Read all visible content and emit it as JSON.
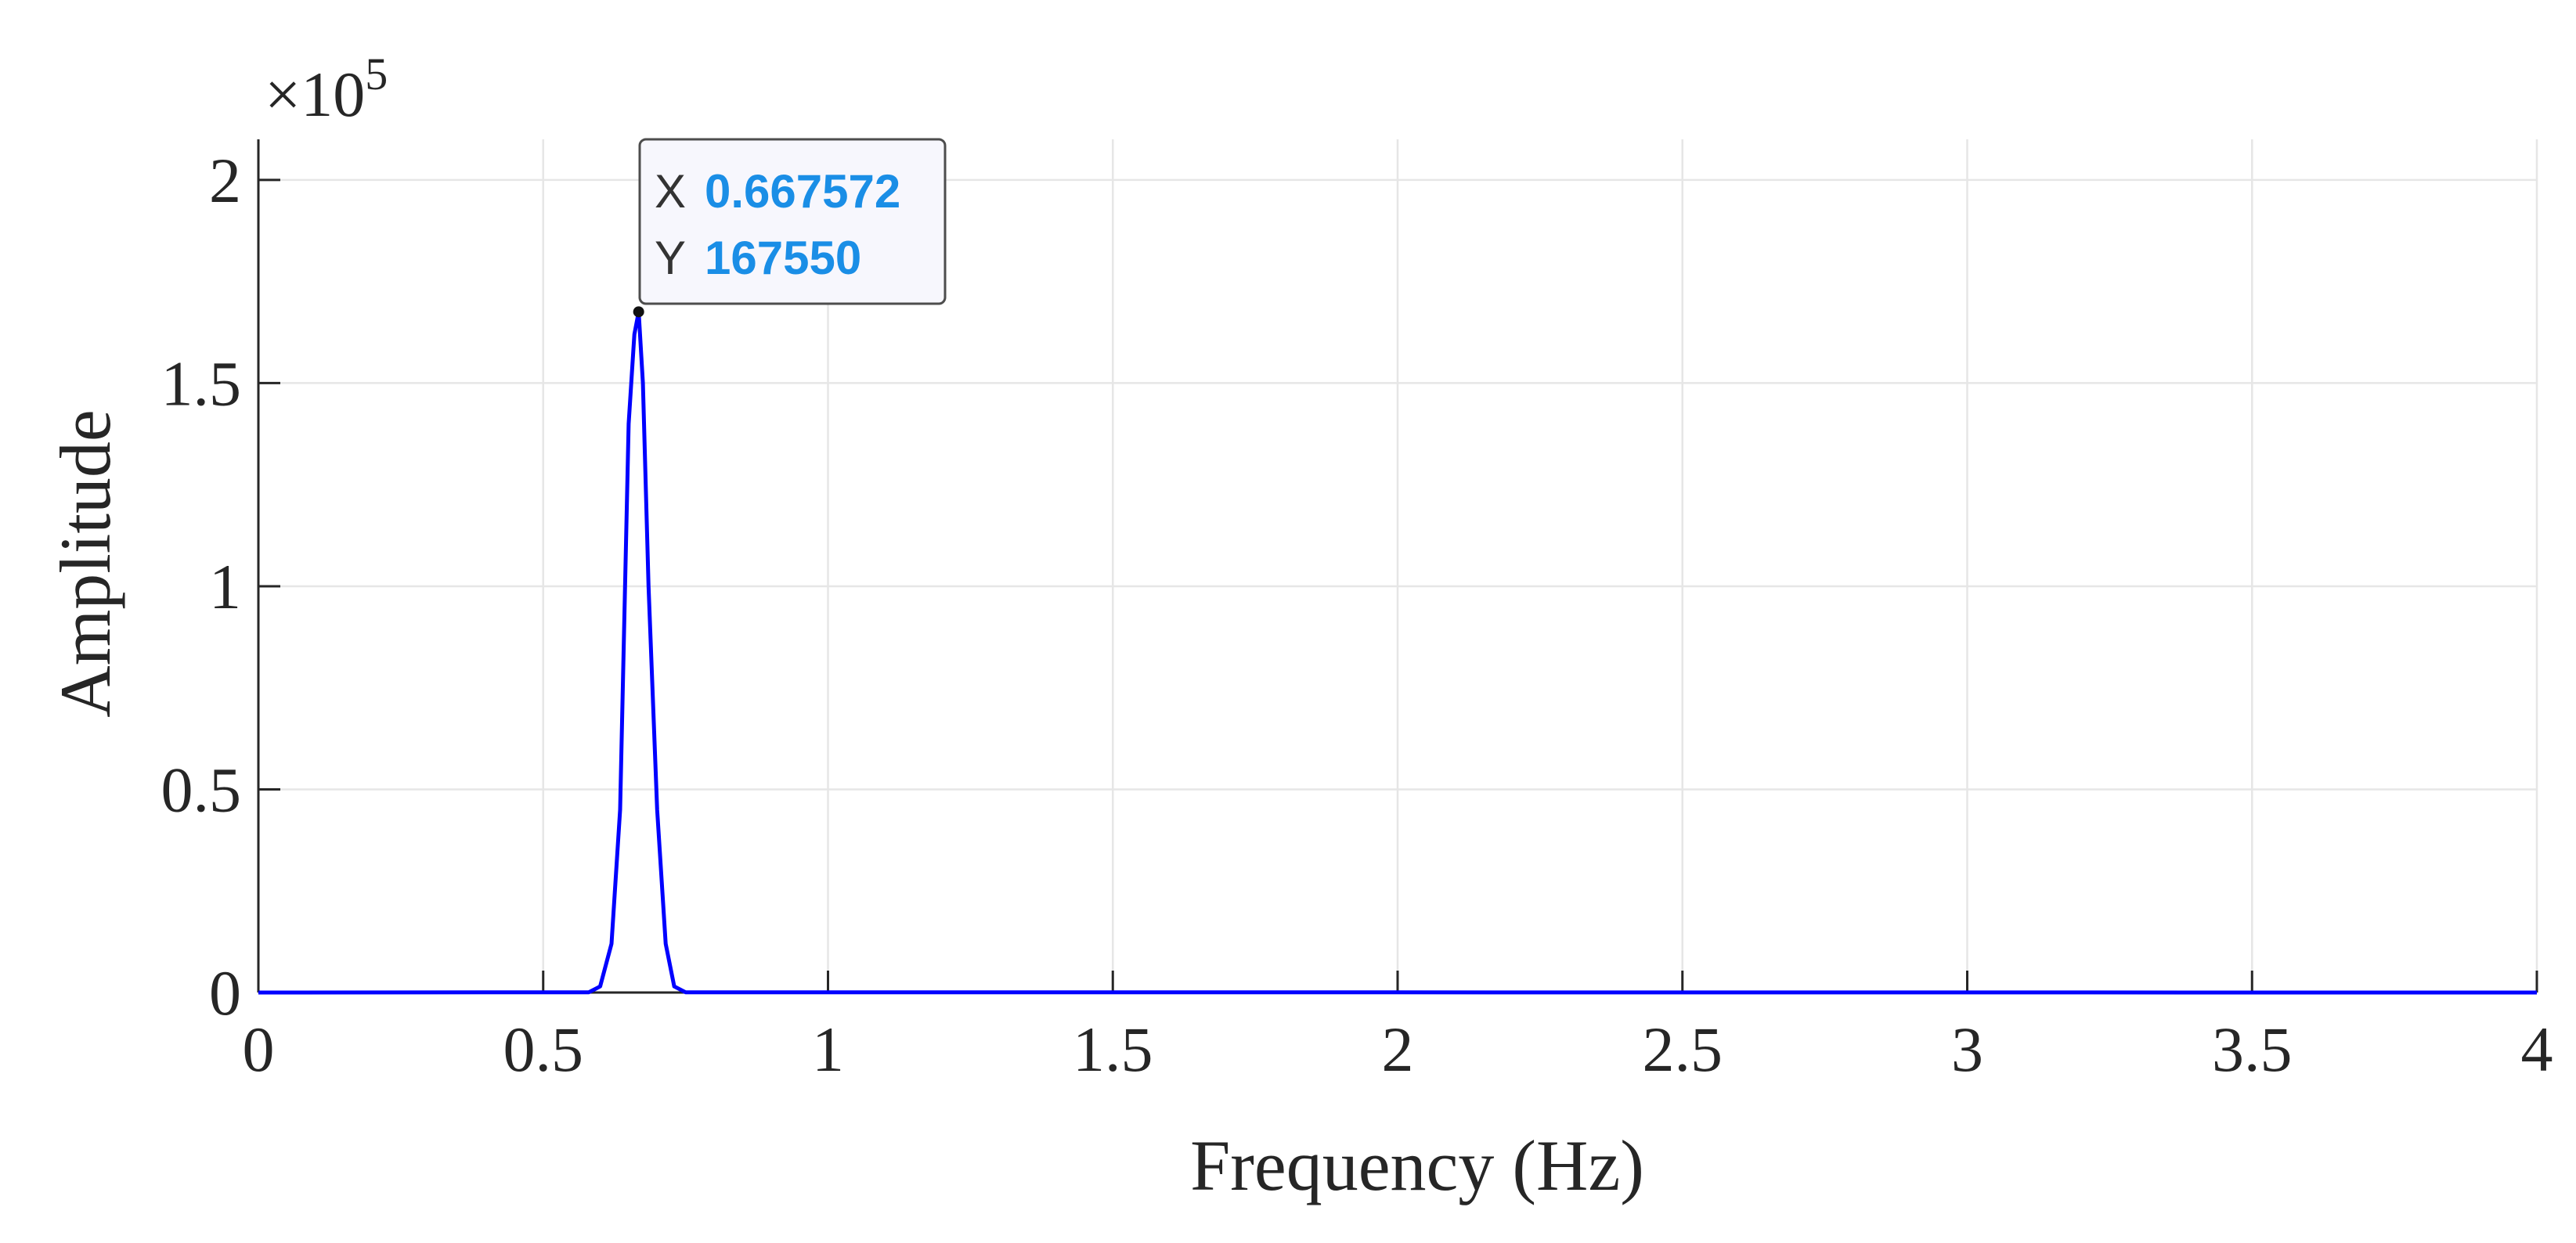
{
  "chart_data": {
    "type": "line",
    "title": "",
    "xlabel": "Frequency (Hz)",
    "ylabel": "Amplitude",
    "xlim": [
      0,
      4
    ],
    "ylim": [
      0,
      2.1
    ],
    "y_scale_exponent_label": "×10",
    "y_scale_exponent": "5",
    "xticks": [
      0,
      0.5,
      1,
      1.5,
      2,
      2.5,
      3,
      3.5,
      4
    ],
    "xtick_labels": [
      "0",
      "0.5",
      "1",
      "1.5",
      "2",
      "2.5",
      "3",
      "3.5",
      "4"
    ],
    "yticks": [
      0,
      0.5,
      1,
      1.5,
      2
    ],
    "ytick_labels": [
      "0",
      "0.5",
      "1",
      "1.5",
      "2"
    ],
    "grid": true,
    "line_color": "#0000ff",
    "series": [
      {
        "x": [
          0,
          0.4,
          0.58,
          0.6,
          0.62,
          0.635,
          0.65,
          0.66,
          0.6676,
          0.675,
          0.685,
          0.7,
          0.715,
          0.73,
          0.75,
          0.8,
          4
        ],
        "y": [
          0,
          0.0005,
          0.0005,
          0.015,
          0.12,
          0.45,
          1.4,
          1.62,
          1.6755,
          1.5,
          1.0,
          0.45,
          0.12,
          0.015,
          0.0005,
          0.0005,
          0
        ]
      }
    ],
    "datatip": {
      "x_key": "X",
      "x_value": "0.667572",
      "y_key": "Y",
      "y_value": "167550",
      "marker_x": 0.667572,
      "marker_y": 1.6755
    }
  }
}
